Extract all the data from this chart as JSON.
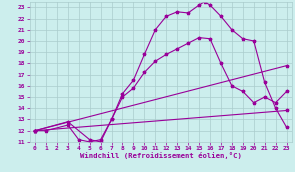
{
  "xlabel": "Windchill (Refroidissement éolien,°C)",
  "bg_color": "#cceeed",
  "line_color": "#990099",
  "grid_color": "#aacccc",
  "xlim": [
    -0.5,
    23.5
  ],
  "ylim": [
    11,
    23.5
  ],
  "xticks": [
    0,
    1,
    2,
    3,
    4,
    5,
    6,
    7,
    8,
    9,
    10,
    11,
    12,
    13,
    14,
    15,
    16,
    17,
    18,
    19,
    20,
    21,
    22,
    23
  ],
  "yticks": [
    11,
    12,
    13,
    14,
    15,
    16,
    17,
    18,
    19,
    20,
    21,
    22,
    23
  ],
  "line1_x": [
    0,
    1,
    3,
    4,
    5,
    6,
    7,
    8,
    9,
    10,
    11,
    12,
    13,
    14,
    15,
    15.5,
    16,
    17,
    18,
    19,
    20,
    21,
    22,
    23
  ],
  "line1_y": [
    12,
    12,
    12.5,
    11.2,
    11.0,
    11.2,
    13.0,
    15.3,
    16.5,
    18.8,
    21.0,
    22.2,
    22.6,
    22.5,
    23.2,
    23.5,
    23.2,
    22.2,
    21.0,
    20.2,
    20.0,
    16.3,
    14.0,
    12.3
  ],
  "line2_x": [
    0,
    3,
    5,
    6,
    7,
    8,
    9,
    10,
    11,
    12,
    13,
    14,
    15,
    16,
    17,
    18,
    19,
    20,
    21,
    22,
    23
  ],
  "line2_y": [
    12,
    12.8,
    11.2,
    11.0,
    13.0,
    15.0,
    15.8,
    17.2,
    18.2,
    18.8,
    19.3,
    19.8,
    20.3,
    20.2,
    18.0,
    16.0,
    15.5,
    14.5,
    15.0,
    14.5,
    15.5
  ],
  "line3_x": [
    0,
    23
  ],
  "line3_y": [
    12,
    17.8
  ],
  "line4_x": [
    0,
    23
  ],
  "line4_y": [
    12,
    13.8
  ]
}
